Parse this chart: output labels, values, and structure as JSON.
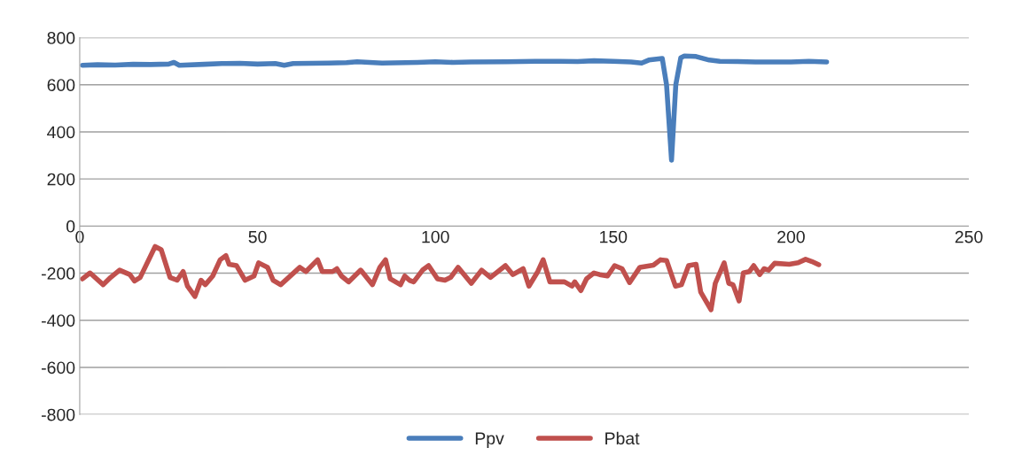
{
  "chart_data": {
    "type": "line",
    "xlim": [
      0,
      250
    ],
    "xticks": [
      0,
      50,
      100,
      150,
      200,
      250
    ],
    "ylim": [
      -800,
      800
    ],
    "yticks": [
      -800,
      -600,
      -400,
      -200,
      0,
      200,
      400,
      600,
      800
    ],
    "grid": "y",
    "legend": "bottom",
    "marker": "none",
    "line_style": "solid",
    "series": [
      {
        "name": "Ppv",
        "color": "#4a7ebb",
        "x": [
          0.8,
          5,
          10,
          15,
          20,
          25,
          26.5,
          28,
          35,
          40,
          45,
          50,
          55,
          57.5,
          60,
          70,
          75,
          78,
          85,
          95,
          100,
          105,
          110,
          120,
          128,
          135,
          140,
          144.6,
          150,
          155,
          158,
          160,
          163.8,
          165,
          166.4,
          167.6,
          169,
          170,
          173.3,
          177,
          180,
          185,
          190,
          200,
          205,
          210
        ],
        "values": [
          683,
          685,
          684,
          687,
          686,
          688,
          695,
          683,
          687,
          690,
          691,
          688,
          690,
          683,
          690,
          692,
          694,
          698,
          692,
          695,
          698,
          695,
          697,
          698,
          700,
          700,
          699,
          702,
          700,
          697,
          692,
          705,
          712,
          600,
          280,
          600,
          715,
          722,
          720,
          705,
          700,
          699,
          697,
          697,
          700,
          697
        ]
      },
      {
        "name": "Pbat",
        "color": "#c0504d",
        "x": [
          0.8,
          2.9,
          6.6,
          8.7,
          11.2,
          14.1,
          15.4,
          17,
          21.2,
          22.9,
          25.4,
          27.4,
          29.1,
          30.3,
          32.4,
          34.1,
          35.3,
          37.4,
          39.5,
          41.1,
          42,
          44.1,
          46.5,
          49,
          50.3,
          52.8,
          54.4,
          56.5,
          61.9,
          63.6,
          66.9,
          68.2,
          71.1,
          72.3,
          73.6,
          75.6,
          79,
          82.3,
          84.4,
          86,
          87.3,
          90.2,
          91.4,
          92.7,
          93.9,
          96.4,
          98.1,
          100.6,
          102.7,
          104.3,
          106.4,
          110.1,
          113,
          115.5,
          119.7,
          121.8,
          124.7,
          126.3,
          128.8,
          130.3,
          132.2,
          136.3,
          138.4,
          139.2,
          140.9,
          142.5,
          144.6,
          146.2,
          148.4,
          150.4,
          152.5,
          154.6,
          157.5,
          161.3,
          163.3,
          165,
          167.5,
          169.2,
          171.2,
          173.3,
          174.6,
          177.5,
          178.7,
          181.2,
          182.5,
          183.7,
          185.4,
          186.6,
          188.3,
          189.5,
          191.2,
          192.4,
          193.7,
          195.4,
          199.5,
          202,
          204.1,
          205.8,
          207.8
        ],
        "values": [
          -224,
          -199,
          -249,
          -218,
          -187,
          -206,
          -233,
          -218,
          -87,
          -100,
          -218,
          -230,
          -193,
          -255,
          -299,
          -230,
          -249,
          -212,
          -143,
          -125,
          -162,
          -168,
          -230,
          -212,
          -156,
          -175,
          -230,
          -249,
          -175,
          -193,
          -143,
          -193,
          -193,
          -181,
          -212,
          -237,
          -187,
          -249,
          -175,
          -143,
          -224,
          -249,
          -212,
          -230,
          -237,
          -187,
          -168,
          -224,
          -230,
          -218,
          -175,
          -243,
          -187,
          -218,
          -168,
          -206,
          -181,
          -255,
          -193,
          -143,
          -237,
          -237,
          -255,
          -237,
          -274,
          -224,
          -199,
          -206,
          -212,
          -168,
          -181,
          -240,
          -175,
          -166,
          -143,
          -146,
          -255,
          -249,
          -168,
          -162,
          -280,
          -355,
          -243,
          -156,
          -243,
          -249,
          -318,
          -199,
          -193,
          -168,
          -206,
          -181,
          -187,
          -158,
          -162,
          -156,
          -141,
          -150,
          -164
        ]
      }
    ]
  }
}
